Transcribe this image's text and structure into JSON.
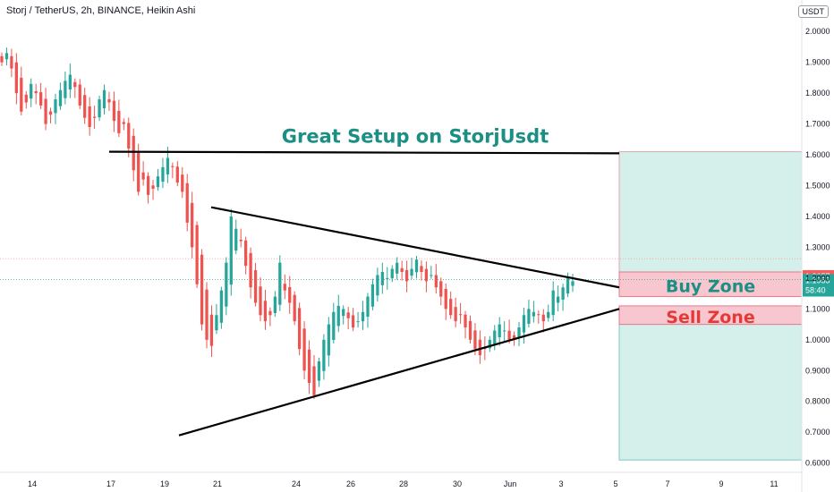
{
  "header": {
    "symbol_line": "Storj / TetherUS, 2h, BINANCE, Heikin Ashi"
  },
  "scale_unit": "USDT",
  "colors": {
    "up": "#26a69a",
    "down": "#ef5350",
    "text_teal": "#1b8f83",
    "text_red": "#e53935",
    "zone_pink": "#f8c6cf",
    "zone_teal": "#d5efeb",
    "price_red": "#f05f5f",
    "price_green": "#26a69a"
  },
  "chart_data": {
    "type": "candlestick",
    "title": "Great Setup on StorjUsdt",
    "x_ticks": [
      "14",
      "17",
      "19",
      "21",
      "24",
      "26",
      "28",
      "30",
      "Jun",
      "3",
      "5",
      "7",
      "9",
      "11"
    ],
    "y_ticks": [
      "0.6000",
      "0.7000",
      "0.8000",
      "0.9000",
      "1.0000",
      "1.1000",
      "1.2000",
      "1.3000",
      "1.4000",
      "1.5000",
      "1.6000",
      "1.7000",
      "1.8000",
      "1.9000",
      "2.0000"
    ],
    "ylim": [
      0.57,
      2.05
    ],
    "price_labels": {
      "last_red": "1.2057",
      "last_green": "1.1953",
      "countdown": "58:40"
    },
    "annotations": {
      "buy_zone": "Buy Zone",
      "sell_zone": "Sell Zone"
    },
    "zones": {
      "buy_zone": {
        "from": 1.14,
        "to": 1.22
      },
      "sell_zone": {
        "from": 1.05,
        "to": 1.11
      },
      "target_box": {
        "from": 1.22,
        "to": 1.61
      },
      "stop_box": {
        "from": 0.61,
        "to": 1.05
      }
    },
    "lines": {
      "resistance": 1.61,
      "upper_trend": {
        "start": 1.43,
        "end": 1.17
      },
      "lower_trend": {
        "start": 0.69,
        "end": 1.1
      }
    },
    "price_series": [
      1.9,
      1.93,
      1.88,
      1.8,
      1.74,
      1.77,
      1.83,
      1.8,
      1.76,
      1.7,
      1.73,
      1.78,
      1.81,
      1.84,
      1.86,
      1.82,
      1.76,
      1.72,
      1.69,
      1.72,
      1.78,
      1.81,
      1.77,
      1.71,
      1.67,
      1.7,
      1.62,
      1.55,
      1.48,
      1.52,
      1.47,
      1.49,
      1.53,
      1.56,
      1.59,
      1.56,
      1.51,
      1.48,
      1.38,
      1.3,
      1.18,
      1.05,
      1.0,
      0.98,
      1.08,
      1.16,
      1.25,
      1.4,
      1.36,
      1.32,
      1.24,
      1.17,
      1.12,
      1.08,
      1.06,
      1.08,
      1.14,
      1.25,
      1.16,
      1.12,
      1.06,
      0.97,
      0.9,
      0.86,
      0.82,
      0.93,
      1.0,
      1.05,
      1.09,
      1.11,
      1.1,
      1.07,
      1.04,
      1.06,
      1.09,
      1.14,
      1.18,
      1.21,
      1.22,
      1.2,
      1.23,
      1.25,
      1.22,
      1.19,
      1.23,
      1.26,
      1.22,
      1.19,
      1.21,
      1.17,
      1.14,
      1.1,
      1.08,
      1.06,
      1.08,
      1.04,
      1.0,
      0.97,
      0.95,
      0.97,
      1.0,
      1.03,
      1.05,
      1.03,
      1.0,
      1.0,
      1.04,
      1.08,
      1.1,
      1.09,
      1.08,
      1.06,
      1.09,
      1.16,
      1.14,
      1.17,
      1.2,
      1.19
    ]
  }
}
